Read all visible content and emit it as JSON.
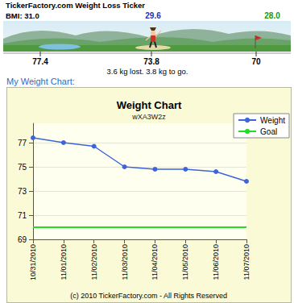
{
  "ticker": {
    "title": "TickerFactory.com Weight Loss Ticker",
    "bmi_label": "BMI:",
    "bmi": [
      "31.0",
      "29.6",
      "28.0"
    ],
    "weights": [
      "77.4",
      "73.8",
      "70"
    ],
    "progress": "3.6 kg lost. 3.8 kg to go."
  },
  "heading": "My Weight Chart:",
  "chart_data": {
    "type": "line",
    "title": "Weight Chart",
    "subtitle": "wXA3W2z",
    "categories": [
      "10/31/2010",
      "11/01/2010",
      "11/02/2010",
      "11/03/2010",
      "11/04/2010",
      "11/05/2010",
      "11/06/2010",
      "11/07/2010"
    ],
    "series": [
      {
        "name": "Weight",
        "color": "#3d64d8",
        "marker": "circle",
        "line_style": "solid",
        "values": [
          77.4,
          77.0,
          76.7,
          75.0,
          74.8,
          74.8,
          74.6,
          73.8
        ]
      },
      {
        "name": "Goal",
        "color": "#22dd22",
        "marker": "none",
        "line_style": "solid",
        "values": [
          70,
          70,
          70,
          70,
          70,
          70,
          70,
          70
        ]
      }
    ],
    "ylim": [
      69,
      78.6
    ],
    "yticks": [
      69,
      71,
      73,
      75,
      77
    ],
    "grid": true,
    "legend": "upper right"
  },
  "copyright": "(c) 2010 TickerFactory.com - All Rights Reserved"
}
